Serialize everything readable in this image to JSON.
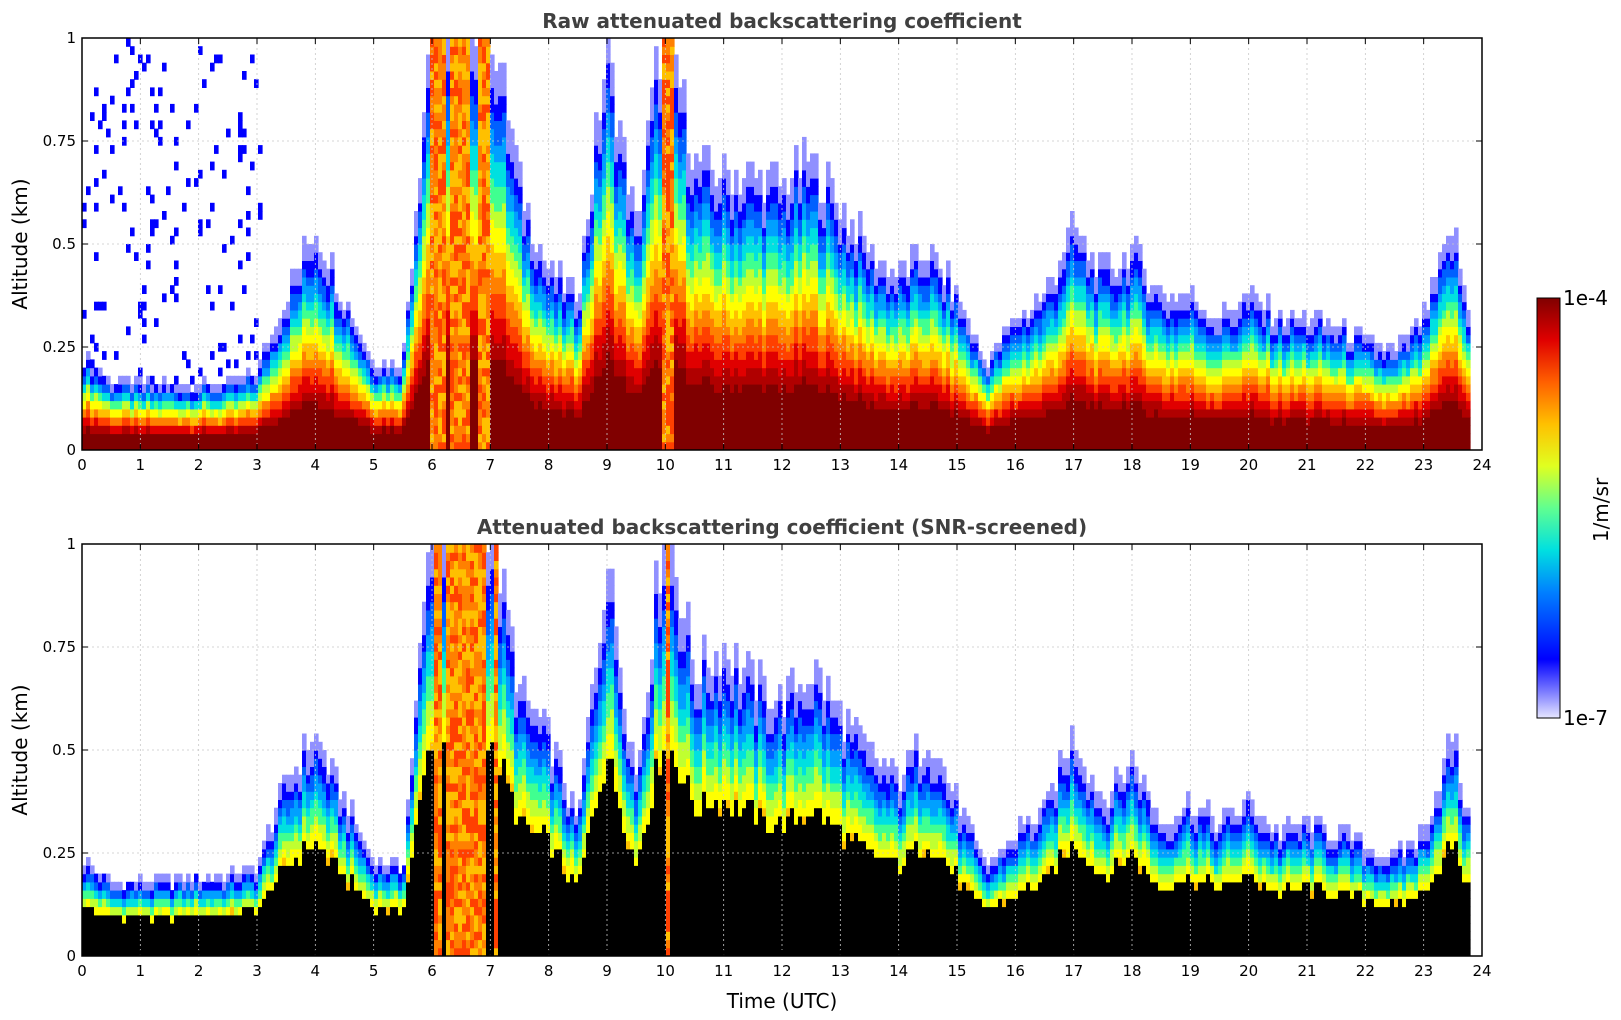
{
  "chart_data": [
    {
      "type": "heatmap",
      "title": "Raw attenuated backscattering coefficient",
      "xlabel": "",
      "ylabel": "Altitude (km)",
      "xlim": [
        0,
        24
      ],
      "ylim": [
        0,
        1
      ],
      "x_ticks": [
        "0",
        "1",
        "2",
        "3",
        "4",
        "5",
        "6",
        "7",
        "8",
        "9",
        "10",
        "11",
        "12",
        "13",
        "14",
        "15",
        "16",
        "17",
        "18",
        "19",
        "20",
        "21",
        "22",
        "23",
        "24"
      ],
      "y_ticks": [
        "0",
        "0.25",
        "0.5",
        "0.75",
        "1"
      ],
      "grid": true,
      "screened": false,
      "colormap": "jet",
      "profile": {
        "time_utc": [
          0,
          0.5,
          1,
          1.5,
          2,
          2.5,
          3,
          3.5,
          4,
          4.5,
          5,
          5.5,
          6,
          6.5,
          7,
          7.5,
          8,
          8.5,
          9,
          9.5,
          10,
          10.5,
          11,
          11.5,
          12,
          12.5,
          13,
          13.5,
          14,
          14.5,
          15,
          15.5,
          16,
          16.5,
          17,
          17.5,
          18,
          18.5,
          19,
          19.5,
          20,
          20.5,
          21,
          21.5,
          22,
          22.5,
          23,
          23.5,
          23.8
        ],
        "layer_top_km": [
          0.22,
          0.16,
          0.15,
          0.15,
          0.15,
          0.15,
          0.18,
          0.35,
          0.5,
          0.35,
          0.2,
          0.2,
          1.0,
          1.0,
          1.0,
          0.6,
          0.4,
          0.35,
          0.9,
          0.5,
          1.0,
          0.65,
          0.62,
          0.62,
          0.6,
          0.65,
          0.55,
          0.45,
          0.4,
          0.45,
          0.35,
          0.2,
          0.3,
          0.35,
          0.5,
          0.4,
          0.45,
          0.35,
          0.35,
          0.3,
          0.35,
          0.3,
          0.3,
          0.28,
          0.25,
          0.22,
          0.3,
          0.5,
          0.28
        ]
      }
    },
    {
      "type": "heatmap",
      "title": "Attenuated backscattering coefficient (SNR-screened)",
      "xlabel": "Time (UTC)",
      "ylabel": "Altitude (km)",
      "xlim": [
        0,
        24
      ],
      "ylim": [
        0,
        1
      ],
      "x_ticks": [
        "0",
        "1",
        "2",
        "3",
        "4",
        "5",
        "6",
        "7",
        "8",
        "9",
        "10",
        "11",
        "12",
        "13",
        "14",
        "15",
        "16",
        "17",
        "18",
        "19",
        "20",
        "21",
        "22",
        "23",
        "24"
      ],
      "y_ticks": [
        "0",
        "0.25",
        "0.5",
        "0.75",
        "1"
      ],
      "grid": true,
      "screened": true,
      "colormap": "jet",
      "profile": {
        "time_utc": [
          0,
          0.5,
          1,
          1.5,
          2,
          2.5,
          3,
          3.5,
          4,
          4.5,
          5,
          5.5,
          6,
          6.5,
          7,
          7.5,
          8,
          8.5,
          9,
          9.5,
          10,
          10.5,
          11,
          11.5,
          12,
          12.5,
          13,
          13.5,
          14,
          14.5,
          15,
          15.5,
          16,
          16.5,
          17,
          17.5,
          18,
          18.5,
          19,
          19.5,
          20,
          20.5,
          21,
          21.5,
          22,
          22.5,
          23,
          23.5,
          23.8
        ],
        "layer_top_km": [
          0.22,
          0.17,
          0.17,
          0.17,
          0.18,
          0.18,
          0.2,
          0.4,
          0.5,
          0.35,
          0.22,
          0.2,
          1.0,
          1.0,
          1.0,
          0.6,
          0.5,
          0.3,
          0.9,
          0.4,
          1.0,
          0.65,
          0.7,
          0.62,
          0.58,
          0.65,
          0.55,
          0.45,
          0.4,
          0.5,
          0.35,
          0.2,
          0.28,
          0.33,
          0.5,
          0.35,
          0.45,
          0.3,
          0.35,
          0.3,
          0.35,
          0.28,
          0.3,
          0.28,
          0.25,
          0.22,
          0.28,
          0.5,
          0.28
        ]
      }
    }
  ],
  "colorbar": {
    "label": "1/m/sr",
    "max_label": "1e-4",
    "min_label": "1e-7",
    "scale": "log"
  }
}
